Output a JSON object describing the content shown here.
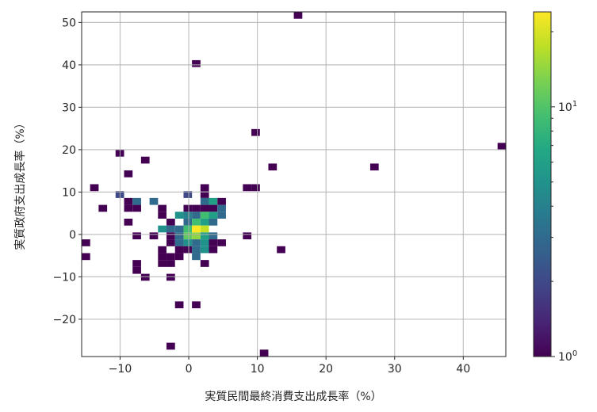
{
  "chart_data": {
    "type": "heatmap",
    "subtype": "hist2d",
    "title": "",
    "xlabel": "実質民間最終消費支出成長率（%）",
    "ylabel": "実質政府支出成長率（%）",
    "xlim": [
      -15.6,
      46.2
    ],
    "ylim": [
      -28.8,
      52.5
    ],
    "bin_width": [
      1.237,
      1.626
    ],
    "grid": true,
    "x_ticks": [
      -10,
      0,
      10,
      20,
      30,
      40
    ],
    "y_ticks": [
      -20,
      -10,
      0,
      10,
      20,
      30,
      40,
      50
    ],
    "colormap": "viridis",
    "color_scale": "log",
    "colorbar": {
      "range": [
        1,
        24
      ],
      "major_ticks": [
        1,
        10
      ],
      "major_labels": [
        "10",
        "10"
      ],
      "major_exponents": [
        "0",
        "1"
      ],
      "minor_ticks": [
        2,
        3,
        4,
        5,
        6,
        7,
        8,
        9,
        20
      ]
    },
    "cells": [
      [
        15.93,
        51.69,
        1
      ],
      [
        1.09,
        40.3,
        1
      ],
      [
        9.75,
        24.05,
        1
      ],
      [
        45.62,
        20.79,
        1
      ],
      [
        -10.04,
        19.17,
        1
      ],
      [
        -6.33,
        17.54,
        1
      ],
      [
        12.22,
        15.91,
        1
      ],
      [
        27.06,
        15.91,
        1
      ],
      [
        -8.8,
        14.29,
        1
      ],
      [
        -13.75,
        11.04,
        1
      ],
      [
        2.33,
        11.04,
        1
      ],
      [
        8.51,
        11.04,
        1
      ],
      [
        9.75,
        11.04,
        1
      ],
      [
        -10.04,
        9.41,
        2
      ],
      [
        -0.14,
        9.41,
        2
      ],
      [
        2.33,
        9.41,
        1
      ],
      [
        -8.8,
        7.79,
        1
      ],
      [
        -7.56,
        7.79,
        3
      ],
      [
        -5.09,
        7.79,
        3
      ],
      [
        2.33,
        7.79,
        3
      ],
      [
        3.56,
        7.79,
        6
      ],
      [
        4.8,
        7.79,
        1
      ],
      [
        -12.51,
        6.16,
        1
      ],
      [
        -8.8,
        6.16,
        1
      ],
      [
        -7.56,
        6.16,
        1
      ],
      [
        -3.86,
        6.16,
        1
      ],
      [
        -0.14,
        6.16,
        1
      ],
      [
        1.09,
        6.16,
        1
      ],
      [
        2.33,
        6.16,
        1
      ],
      [
        3.56,
        6.16,
        1
      ],
      [
        4.8,
        6.16,
        3
      ],
      [
        -3.86,
        4.54,
        1
      ],
      [
        -1.38,
        4.54,
        5
      ],
      [
        -0.14,
        4.54,
        4
      ],
      [
        1.09,
        4.54,
        3
      ],
      [
        2.33,
        4.54,
        9
      ],
      [
        3.56,
        4.54,
        6
      ],
      [
        4.8,
        4.54,
        3
      ],
      [
        -8.8,
        2.91,
        1
      ],
      [
        -2.62,
        2.91,
        1
      ],
      [
        -0.14,
        2.91,
        3
      ],
      [
        1.09,
        2.91,
        9
      ],
      [
        2.33,
        2.91,
        6
      ],
      [
        3.56,
        2.91,
        3
      ],
      [
        -3.86,
        1.29,
        5
      ],
      [
        -2.62,
        1.29,
        3
      ],
      [
        -1.38,
        1.29,
        3
      ],
      [
        -0.14,
        1.29,
        9
      ],
      [
        1.09,
        1.29,
        24
      ],
      [
        2.33,
        1.29,
        18
      ],
      [
        -7.56,
        -0.34,
        1
      ],
      [
        -5.09,
        -0.34,
        1
      ],
      [
        -2.62,
        -0.34,
        1
      ],
      [
        -1.38,
        -0.34,
        3
      ],
      [
        -0.14,
        -0.34,
        11
      ],
      [
        1.09,
        -0.34,
        14
      ],
      [
        2.33,
        -0.34,
        6
      ],
      [
        3.56,
        -0.34,
        3
      ],
      [
        8.51,
        -0.34,
        1
      ],
      [
        -14.98,
        -1.97,
        1
      ],
      [
        -2.62,
        -1.97,
        1
      ],
      [
        -1.38,
        -1.97,
        3
      ],
      [
        -0.14,
        -1.97,
        5
      ],
      [
        1.09,
        -1.97,
        3
      ],
      [
        2.33,
        -1.97,
        5
      ],
      [
        3.56,
        -1.97,
        1
      ],
      [
        4.8,
        -1.97,
        1
      ],
      [
        -3.86,
        -3.59,
        1
      ],
      [
        -1.38,
        -3.59,
        1
      ],
      [
        -0.14,
        -3.59,
        1
      ],
      [
        1.09,
        -3.59,
        3
      ],
      [
        2.33,
        -3.59,
        5
      ],
      [
        3.56,
        -3.59,
        1
      ],
      [
        13.46,
        -3.59,
        1
      ],
      [
        -14.98,
        -5.22,
        1
      ],
      [
        -3.86,
        -5.22,
        1
      ],
      [
        -2.62,
        -5.22,
        1
      ],
      [
        -1.38,
        -5.22,
        1
      ],
      [
        1.09,
        -5.22,
        3
      ],
      [
        -7.56,
        -6.84,
        1
      ],
      [
        -3.86,
        -6.84,
        1
      ],
      [
        -2.62,
        -6.84,
        1
      ],
      [
        2.33,
        -6.84,
        1
      ],
      [
        -7.56,
        -8.47,
        1
      ],
      [
        -6.33,
        -10.1,
        1
      ],
      [
        -2.62,
        -10.1,
        1
      ],
      [
        -1.38,
        -16.6,
        1
      ],
      [
        1.09,
        -16.6,
        1
      ],
      [
        -2.62,
        -26.36,
        1
      ],
      [
        10.98,
        -27.98,
        1
      ]
    ]
  }
}
